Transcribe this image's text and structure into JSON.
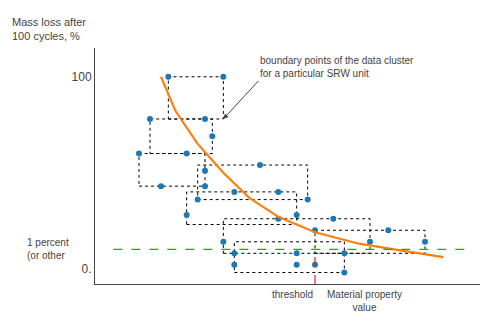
{
  "chart_data": {
    "type": "scatter",
    "xlabel": "Material property\nvalue",
    "ylabel": "Mass loss after\n100 cycles, %",
    "xlim": [
      0,
      10.5
    ],
    "ylim": [
      -8,
      115
    ],
    "yticks": [
      {
        "value": 0,
        "label": "0."
      },
      100
    ],
    "tick_labels": "y",
    "grid": false,
    "series": [
      {
        "type": "rectangles",
        "line_style": "dotted",
        "boxes": [
          {
            "xmin": 2.0,
            "xmax": 3.5,
            "ymin": 78,
            "ymax": 100
          },
          {
            "xmin": 1.5,
            "xmax": 3.2,
            "ymin": 60,
            "ymax": 78
          },
          {
            "xmin": 1.2,
            "xmax": 3.0,
            "ymin": 43,
            "ymax": 60
          },
          {
            "xmin": 2.8,
            "xmax": 5.8,
            "ymin": 36,
            "ymax": 54
          },
          {
            "xmin": 2.5,
            "xmax": 5.5,
            "ymin": 23,
            "ymax": 40
          },
          {
            "xmin": 3.5,
            "xmax": 7.5,
            "ymin": 8,
            "ymax": 26
          },
          {
            "xmin": 6.0,
            "xmax": 9.0,
            "ymin": 8,
            "ymax": 20
          },
          {
            "xmin": 3.8,
            "xmax": 6.8,
            "ymin": -2,
            "ymax": 14
          }
        ]
      },
      {
        "type": "scatter",
        "marker": "circle",
        "x": [
          2.0,
          3.5,
          1.5,
          3.0,
          3.2,
          1.2,
          2.5,
          3.0,
          1.8,
          3.0,
          2.8,
          4.5,
          5.8,
          2.5,
          3.8,
          5.0,
          5.5,
          3.5,
          5.0,
          6.5,
          7.5,
          3.8,
          5.5,
          6.8,
          6.0,
          8.0,
          9.0,
          3.8,
          5.5,
          6.0,
          6.8
        ],
        "values": [
          100,
          100,
          78,
          78,
          69,
          60,
          60,
          51,
          43,
          43,
          36,
          54,
          36,
          28,
          40,
          40,
          28,
          14,
          26,
          26,
          14,
          8,
          8,
          8,
          20,
          20,
          14,
          2,
          2,
          2,
          -2
        ]
      },
      {
        "type": "line",
        "line_style": "solid",
        "x": [
          1.8,
          2.2,
          2.8,
          3.5,
          4.2,
          5.0,
          6.0,
          7.2,
          8.5,
          9.5
        ],
        "values": [
          100,
          82,
          65,
          50,
          37,
          27,
          19,
          13,
          9,
          6
        ]
      },
      {
        "type": "line",
        "line_style": "dashed",
        "x": [
          0.5,
          10.2
        ],
        "values": [
          10,
          10
        ]
      },
      {
        "type": "line",
        "line_style": "dashed",
        "x": [
          6.0,
          6.0
        ],
        "values": [
          -8,
          10
        ]
      }
    ],
    "annotations": [
      {
        "text": "1 percent\n(or other",
        "y": 10
      },
      {
        "text": "threshold",
        "x": 6.0
      },
      {
        "text": "boundary points of the data cluster\nfor a particular SRW unit",
        "x": 3.5,
        "y": 78
      }
    ]
  }
}
